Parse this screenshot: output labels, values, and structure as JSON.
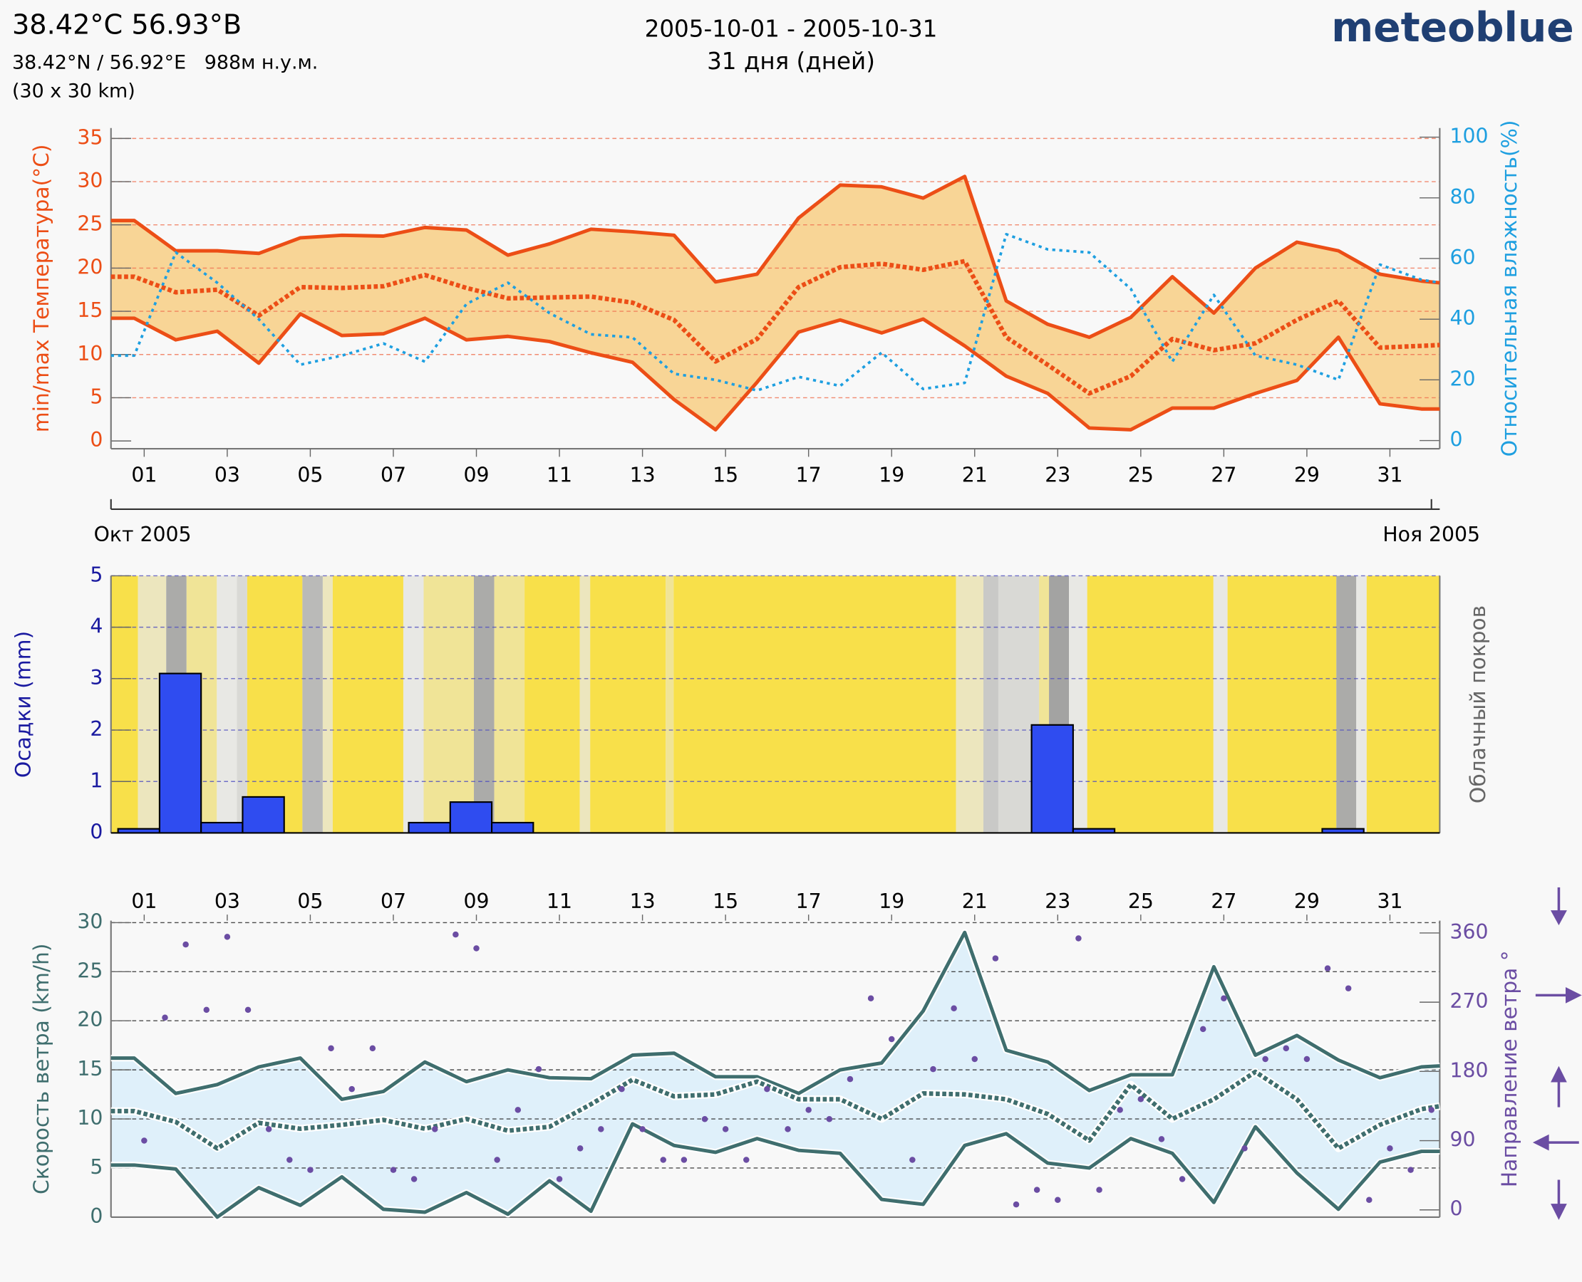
{
  "header": {
    "title": "38.42°C 56.93°B",
    "coords": "38.42°N / 56.92°E   988м н.у.м.",
    "resolution": "(30 x 30 km)",
    "period": "2005-10-01 - 2005-10-31",
    "days": "31 дня (дней)",
    "logo": "meteoblue"
  },
  "chart_data": [
    {
      "type": "line",
      "ylabel": "min/max Температура(°C)",
      "y2label": "Относительная влажность(%)",
      "xlim": [
        0.2,
        32.2
      ],
      "xticks": [
        {
          "value": 1,
          "label": "01"
        },
        {
          "value": 3,
          "label": "03"
        },
        {
          "value": 5,
          "label": "05"
        },
        {
          "value": 7,
          "label": "07"
        },
        {
          "value": 9,
          "label": "09"
        },
        11,
        13,
        15,
        17,
        19,
        21,
        23,
        25,
        27,
        29,
        31
      ],
      "months": [
        {
          "value": 0.2,
          "label": "Окт 2005"
        },
        {
          "value": 32,
          "label": "Ноя 2005"
        }
      ],
      "ylim": [
        -0.9,
        36.2
      ],
      "yticks": [
        0,
        5,
        10,
        15,
        20,
        25,
        30,
        35
      ],
      "y2lim": [
        -2.7,
        103
      ],
      "y2ticks": [
        0,
        20,
        40,
        60,
        80,
        100
      ],
      "grid": true,
      "grid_color": "#f07050",
      "x": [
        0.2,
        0.76,
        1.76,
        2.76,
        3.76,
        4.76,
        5.76,
        6.76,
        7.76,
        8.76,
        9.76,
        10.76,
        11.76,
        12.76,
        13.76,
        14.76,
        15.76,
        16.76,
        17.76,
        18.76,
        19.76,
        20.76,
        21.76,
        22.76,
        23.76,
        24.76,
        25.76,
        26.76,
        27.76,
        28.76,
        29.76,
        30.76,
        31.76,
        32.2
      ],
      "fill_between": [
        0,
        1
      ],
      "fill_color": "#f8d596",
      "series": [
        {
          "color": "#ec4e16",
          "dash": false,
          "values": [
            25.5,
            25.5,
            22,
            22,
            21.7,
            23.5,
            23.8,
            23.7,
            24.7,
            24.4,
            21.5,
            22.8,
            24.5,
            24.2,
            23.8,
            18.4,
            19.3,
            25.8,
            29.6,
            29.4,
            28.1,
            30.6,
            16.2,
            13.5,
            12,
            14.3,
            19,
            14.8,
            20,
            23,
            22,
            19.3,
            18.5,
            18.3
          ]
        },
        {
          "color": "#ec4e16",
          "dash": false,
          "values": [
            14.2,
            14.2,
            11.7,
            12.7,
            9,
            14.7,
            12.2,
            12.4,
            14.2,
            11.7,
            12.1,
            11.5,
            10.2,
            9.1,
            4.8,
            1.3,
            6.8,
            12.6,
            14,
            12.5,
            14.1,
            11,
            7.5,
            5.5,
            1.5,
            1.3,
            3.8,
            3.8,
            5.5,
            7,
            12,
            4.3,
            3.7,
            3.7
          ]
        },
        {
          "color": "#ec4e16",
          "dash": true,
          "values": [
            19,
            19,
            17.2,
            17.5,
            14.5,
            17.8,
            17.7,
            17.9,
            19.2,
            17.7,
            16.5,
            16.6,
            16.7,
            16,
            14,
            9.2,
            11.8,
            17.8,
            20.1,
            20.5,
            19.8,
            20.8,
            12,
            8.8,
            5.5,
            7.5,
            11.8,
            10.5,
            11.3,
            14,
            16.2,
            10.8,
            11,
            11.1
          ]
        },
        {
          "color": "#1e9fe0",
          "dash": true,
          "axis": "y2",
          "values": [
            28,
            28,
            62,
            52,
            40,
            25,
            28,
            32,
            26,
            45,
            52,
            42,
            35,
            34,
            22,
            20,
            16.5,
            21,
            18,
            29,
            17,
            19,
            68,
            63,
            62,
            50,
            26,
            48,
            28,
            25,
            20,
            58,
            53,
            52
          ]
        }
      ]
    },
    {
      "type": "histogram",
      "ylabel": "Осадки (mm)",
      "y2label": "Облачный покров",
      "xlim": [
        0.2,
        32.2
      ],
      "ylim": [
        0,
        5
      ],
      "yticks": [
        0,
        1,
        2,
        3,
        4,
        5
      ],
      "grid": true,
      "grid_color": "#5050c0",
      "color": "#2f4cf0",
      "bins": [
        0.37,
        1.37,
        2.37,
        3.37,
        4.37,
        5.37,
        6.37,
        7.37,
        8.37,
        9.37,
        10.37,
        11.37,
        12.37,
        13.37,
        14.37,
        15.37,
        16.37,
        17.37,
        18.37,
        19.37,
        20.37,
        21.37,
        22.37,
        23.37,
        24.37,
        25.37,
        26.37,
        27.37,
        28.37,
        29.37,
        30.37,
        31.37
      ],
      "values": [
        0.08,
        3.1,
        0.2,
        0.7,
        0,
        0,
        0,
        0.2,
        0.6,
        0.2,
        0,
        0,
        0,
        0,
        0,
        0,
        0,
        0,
        0,
        0,
        0,
        0,
        2.1,
        0.08,
        0,
        0,
        0,
        0,
        0,
        0.08,
        0
      ],
      "cloud_cover": {
        "bins": [
          0.2,
          0.85,
          1.53,
          2.02,
          2.75,
          3.23,
          3.48,
          4.81,
          5.3,
          5.54,
          7.24,
          7.73,
          8.94,
          9.43,
          10.16,
          11.49,
          11.74,
          13.56,
          13.75,
          20.55,
          21.21,
          21.57,
          22.55,
          22.79,
          23.27,
          23.71,
          26.75,
          27.09,
          29.71,
          30.19,
          30.44,
          32.2
        ],
        "values": [
          0,
          30,
          80,
          20,
          40,
          50,
          0,
          70,
          30,
          0,
          40,
          20,
          80,
          20,
          0,
          30,
          0,
          20,
          0,
          30,
          60,
          50,
          20,
          85,
          40,
          0,
          40,
          0,
          80,
          40,
          0
        ]
      }
    },
    {
      "type": "line",
      "ylabel": "Скорость ветра (km/h)",
      "y2label": "Направление ветра °",
      "xlim": [
        0.2,
        32.2
      ],
      "xticks": [
        {
          "value": 1,
          "label": "01"
        },
        {
          "value": 3,
          "label": "03"
        },
        {
          "value": 5,
          "label": "05"
        },
        {
          "value": 7,
          "label": "07"
        },
        {
          "value": 9,
          "label": "09"
        },
        11,
        13,
        15,
        17,
        19,
        21,
        23,
        25,
        27,
        29,
        31
      ],
      "ylim": [
        0,
        30.2
      ],
      "yticks": [
        0,
        5,
        10,
        15,
        20,
        25,
        30
      ],
      "y2lim": [
        -9.4,
        376
      ],
      "y2ticks": [
        0,
        90,
        180,
        270,
        360
      ],
      "grid": true,
      "grid_color": "#222222",
      "x": [
        0.2,
        0.76,
        1.76,
        2.76,
        3.76,
        4.76,
        5.76,
        6.76,
        7.76,
        8.76,
        9.76,
        10.76,
        11.76,
        12.76,
        13.76,
        14.76,
        15.76,
        16.76,
        17.76,
        18.76,
        19.76,
        20.76,
        21.76,
        22.76,
        23.76,
        24.76,
        25.76,
        26.76,
        27.76,
        28.76,
        29.76,
        30.76,
        31.76,
        32.2
      ],
      "fill_between": [
        0,
        1
      ],
      "fill_color": "#dff0fa",
      "series": [
        {
          "color": "#3f6e6e",
          "dash": false,
          "values": [
            16.2,
            16.2,
            12.6,
            13.5,
            15.3,
            16.2,
            12,
            12.8,
            15.8,
            13.8,
            15,
            14.2,
            14.1,
            16.5,
            16.7,
            14.3,
            14.3,
            12.6,
            15,
            15.7,
            21,
            29,
            17,
            15.8,
            12.9,
            14.5,
            14.5,
            25.5,
            16.5,
            18.5,
            16,
            14.2,
            15.3,
            15.4
          ]
        },
        {
          "color": "#3f6e6e",
          "dash": false,
          "values": [
            5.3,
            5.3,
            4.9,
            0,
            3,
            1.2,
            4.1,
            0.8,
            0.5,
            2.5,
            0.3,
            3.7,
            0.6,
            9.5,
            7.3,
            6.6,
            8,
            6.8,
            6.5,
            1.8,
            1.3,
            7.3,
            8.5,
            5.5,
            5,
            8,
            6.5,
            1.5,
            9.2,
            4.5,
            0.8,
            5.6,
            6.7,
            6.7
          ]
        },
        {
          "color": "#3f6e6e",
          "dash": true,
          "values": [
            10.8,
            10.8,
            9.7,
            7,
            9.6,
            9,
            9.4,
            9.9,
            9,
            10,
            8.8,
            9.2,
            11.5,
            14,
            12.3,
            12.5,
            13.8,
            12,
            12,
            10,
            12.6,
            12.5,
            12,
            10.5,
            7.8,
            13.5,
            10,
            12,
            14.8,
            12,
            7,
            9.4,
            11,
            11.3
          ]
        },
        {
          "type": "scatter",
          "color": "#6b4da3",
          "axis": "y2",
          "x": [
            1,
            1.5,
            2,
            2.5,
            3,
            3.5,
            4,
            4.5,
            5,
            5.5,
            6,
            6.5,
            7,
            7.5,
            8,
            8.5,
            9,
            9.5,
            10,
            10.5,
            11,
            11.5,
            12,
            12.5,
            13,
            13.5,
            14,
            14.5,
            15,
            15.5,
            16,
            16.5,
            17,
            17.5,
            18,
            18.5,
            19,
            19.5,
            20,
            20.5,
            21,
            21.5,
            22,
            22.5,
            23,
            23.5,
            24,
            24.5,
            25,
            25.5,
            26,
            26.5,
            27,
            27.5,
            28,
            28.5,
            29,
            29.5,
            30,
            30.5,
            31,
            31.5,
            32
          ],
          "values": [
            90,
            250,
            345,
            260,
            355,
            260,
            105,
            65,
            52,
            210,
            157,
            210,
            52,
            40,
            105,
            358,
            340,
            65,
            130,
            183,
            40,
            80,
            105,
            157,
            105,
            65,
            65,
            118,
            105,
            65,
            157,
            105,
            130,
            118,
            170,
            275,
            222,
            65,
            183,
            262,
            196,
            327,
            7,
            26,
            13,
            353,
            26,
            130,
            144,
            92,
            40,
            235,
            275,
            80,
            196,
            210,
            196,
            314,
            288,
            13,
            80,
            52,
            130
          ]
        }
      ]
    }
  ]
}
